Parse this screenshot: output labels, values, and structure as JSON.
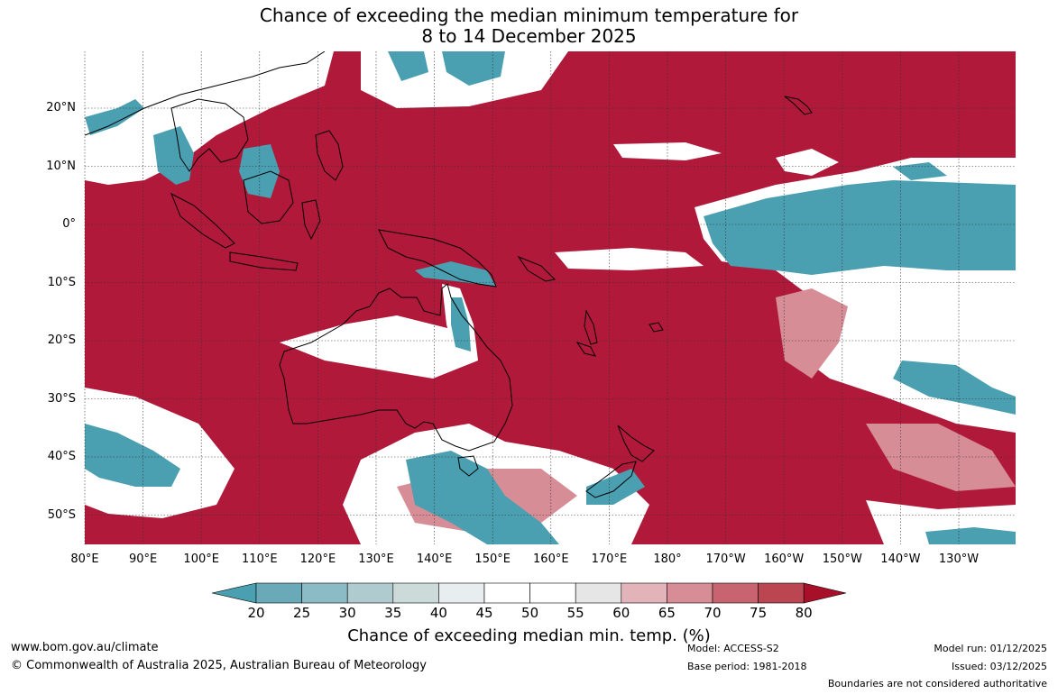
{
  "title_line1": "Chance of exceeding the median minimum temperature for",
  "title_line2": "8 to 14 December 2025",
  "lat_labels": [
    "20°N",
    "10°N",
    "0°",
    "10°S",
    "20°S",
    "30°S",
    "40°S",
    "50°S"
  ],
  "lon_labels": [
    "80°E",
    "90°E",
    "100°E",
    "110°E",
    "120°E",
    "130°E",
    "140°E",
    "150°E",
    "160°E",
    "170°E",
    "180°",
    "170°W",
    "160°W",
    "150°W",
    "140°W",
    "130°W"
  ],
  "colorbar": {
    "labels": [
      "20",
      "25",
      "30",
      "35",
      "40",
      "45",
      "50",
      "55",
      "60",
      "65",
      "70",
      "75",
      "80"
    ],
    "colors": [
      "#4a9fb0",
      "#6aaab8",
      "#8bbcc6",
      "#afcbcf",
      "#ccdada",
      "#e8eef0",
      "#ffffff",
      "#ffffff",
      "#e6e6e6",
      "#e2b4ba",
      "#d68d95",
      "#c8646f",
      "#bb4551",
      "#a8102a"
    ],
    "title": "Chance of exceeding median min. temp. (%)"
  },
  "footer": {
    "site": "www.bom.gov.au/climate",
    "copyright": "© Commonwealth of Australia 2025, Australian Bureau of Meteorology",
    "model": "Model: ACCESS-S2",
    "base_period": "Base period: 1981-2018",
    "model_run": "Model run: 01/12/2025",
    "issued": "Issued: 03/12/2025",
    "disclaimer": "Boundaries are not considered authoritative"
  },
  "map_colors": {
    "high": "#b0193a",
    "low": "#4a9fb0",
    "neutral": "#ffffff",
    "light_low": "#afcbcf",
    "light_high": "#d68d95",
    "coast": "#000000"
  }
}
